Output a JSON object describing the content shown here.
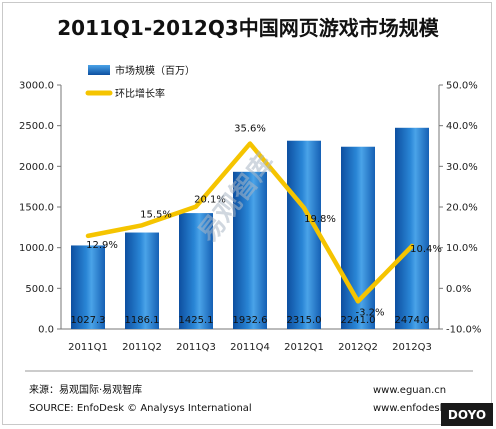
{
  "chart_data": {
    "type": "bar",
    "title": "2011Q1-2012Q3中国网页游戏市场规模",
    "categories": [
      "2011Q1",
      "2011Q2",
      "2011Q3",
      "2011Q4",
      "2012Q1",
      "2012Q2",
      "2012Q3"
    ],
    "series": [
      {
        "name": "市场规模（百万）",
        "type": "bar",
        "axis": "left",
        "color": "#1f6fbf",
        "values": [
          1027.3,
          1186.1,
          1425.1,
          1932.6,
          2315.0,
          2241.0,
          2474.0
        ],
        "labels": [
          "1027.3",
          "1186.1",
          "1425.1",
          "1932.6",
          "2315.0",
          "2241.0",
          "2474.0"
        ]
      },
      {
        "name": "环比增长率",
        "type": "line",
        "axis": "right",
        "color": "#f5c400",
        "values": [
          12.9,
          15.5,
          20.1,
          35.6,
          19.8,
          -3.2,
          10.4
        ],
        "labels": [
          "12.9%",
          "15.5%",
          "20.1%",
          "35.6%",
          "19.8%",
          "-3.2%",
          "10.4%"
        ]
      }
    ],
    "y_left": {
      "ylim": [
        0,
        3000
      ],
      "ticks": [
        0,
        500,
        1000,
        1500,
        2000,
        2500,
        3000
      ],
      "tick_labels": [
        "0.0",
        "500.0",
        "1000.0",
        "1500.0",
        "2000.0",
        "2500.0",
        "3000.0"
      ]
    },
    "y_right": {
      "ylim": [
        -10,
        50
      ],
      "ticks": [
        -10,
        0,
        10,
        20,
        30,
        40,
        50
      ],
      "tick_labels": [
        "-10.0%",
        "0.0%",
        "10.0%",
        "20.0%",
        "30.0%",
        "40.0%",
        "50.0%"
      ]
    },
    "legend_position": "top-left",
    "grid": false
  },
  "watermark": "易观智库",
  "footer": {
    "source_cn": "来源：易观国际·易观智库",
    "source_en": "SOURCE: EnfoDesk © Analysys International",
    "url_1": "www.eguan.cn",
    "url_2": "www.enfodesk.com"
  },
  "corner_logo": "DOYO"
}
